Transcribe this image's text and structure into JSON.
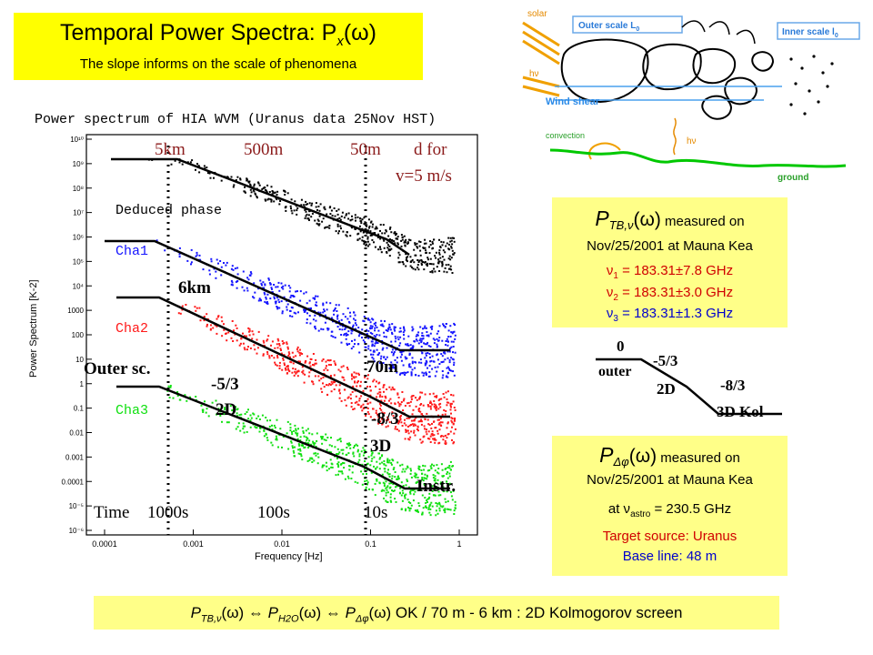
{
  "header": {
    "title": "Temporal Power Spectra: P",
    "title_sub_x": "x",
    "title_omega": "(ω)",
    "subtitle": "The slope informs on the scale of phenomena"
  },
  "plot": {
    "title": "Power spectrum of HIA WVM (Uranus data 25Nov HST)",
    "ylabel": "Power Spectrum [K-2]",
    "xlabel": "Frequency [Hz]",
    "x_ticks": [
      "0.0001",
      "0.001",
      "0.01",
      "0.1",
      "1"
    ],
    "y_ticks": [
      "10¹⁰",
      "10⁹",
      "10⁸",
      "10⁷",
      "10⁶",
      "10⁵",
      "10⁴",
      "1000",
      "100",
      "10",
      "1",
      "0.1",
      "0.01",
      "0.001",
      "0.0001",
      "10⁻⁵",
      "10⁻⁶"
    ],
    "series_labels": [
      "Deduced phase",
      "Cha1",
      "Cha2",
      "Cha3"
    ],
    "colors": {
      "phase": "#000000",
      "cha1": "#1515ff",
      "cha2": "#ff1a1a",
      "cha3": "#10e010"
    },
    "annotations": {
      "scale_5km": "5km",
      "scale_500m": "500m",
      "scale_50m": "50m",
      "scale_d": "d for",
      "scale_v": "v=5 m/s",
      "km6": "6km",
      "m70": "70m",
      "outer_sc": "Outer sc.",
      "slope_53": "-5/3",
      "d2": "2D",
      "slope_83": "-8/3",
      "d3": "3D",
      "instr": "Instr.",
      "time": "Time",
      "t1000": "1000s",
      "t100": "100s",
      "t10": "10s"
    }
  },
  "diagram": {
    "solar": "solar",
    "hv": "hν",
    "outer_scale": "Outer scale L",
    "outer_sub": "0",
    "inner_scale": "Inner scale l",
    "inner_sub": "0",
    "wind_shear": "Wind shear",
    "convection": "convection",
    "hv2": "hν",
    "ground": "ground"
  },
  "box1": {
    "P": "P",
    "sub": "TB,ν",
    "omega": "(ω)",
    "measured": " measured on",
    "line2": "Nov/25/2001 at Mauna Kea",
    "nu_rows": [
      {
        "nu": "ν",
        "sub": "1",
        "val": " = 183.31±7.8 GHz",
        "color": "#d00000"
      },
      {
        "nu": "ν",
        "sub": "2",
        "val": " = 183.31±3.0 GHz",
        "color": "#d00000"
      },
      {
        "nu": "ν",
        "sub": "3",
        "val": " = 183.31±1.3 GHz",
        "color": "#0000cc"
      }
    ]
  },
  "slopes": {
    "zero": "0",
    "outer": "outer",
    "s53": "-5/3",
    "d2": "2D",
    "s83": "-8/3",
    "kol": "3D Kol"
  },
  "box2": {
    "P": "P",
    "sub": "Δφ",
    "omega": "(ω)",
    "measured": " measured on",
    "line2": "Nov/25/2001 at Mauna Kea",
    "line3a": "at ν",
    "line3sub": "astro",
    "line3b": " = 230.5 GHz",
    "target": "Target source: Uranus",
    "baseline": "Base line: 48 m"
  },
  "footer": {
    "text": "P(ω) ⇔ P(ω) ⇔ P(ω) OK  /  70 m - 6 km :  2D Kolmogorov screen",
    "p": "P",
    "sub1": "TB,ν",
    "omega": "(ω)",
    "arrow": " ⇔ ",
    "sub2": "H2O",
    "sub3": "Δφ",
    "tail": " OK  /  70 m - 6 km :  2D Kolmogorov screen"
  }
}
